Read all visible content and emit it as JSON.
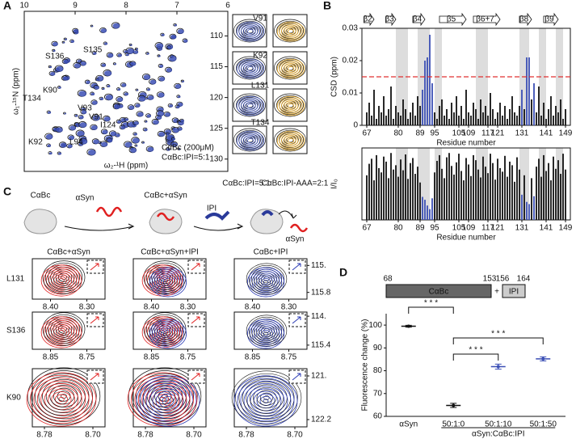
{
  "panel_labels": [
    "A",
    "B",
    "C",
    "D"
  ],
  "panel_a": {
    "x_label": "ω₂-¹H (ppm)",
    "y_label": "ω₁-¹⁵N (ppm)",
    "xlim": [
      10,
      6
    ],
    "xticks": [
      10,
      9,
      8,
      7,
      6
    ],
    "ylim": [
      106,
      132
    ],
    "yticks": [
      110,
      115,
      120,
      125,
      130
    ],
    "peak_labels": [
      "S135",
      "S136",
      "K90",
      "T134",
      "V93",
      "V91",
      "I124",
      "K92",
      "L94"
    ],
    "legend": [
      {
        "name": "CαBc (200μM)",
        "color": "#111111"
      },
      {
        "name": "CαBc:IPI=5:1",
        "color": "#3b4fb5"
      }
    ],
    "insets": {
      "residues": [
        "V91",
        "K92",
        "L131",
        "T134"
      ],
      "captions": [
        "CαBc:IPI=5:1",
        "CαBc:IPI-AAA=2:1"
      ],
      "colors": [
        "#3b4fb5",
        "#e3a21a"
      ]
    }
  },
  "panel_b": {
    "strands": [
      {
        "label": "β2",
        "start": 66,
        "end": 70
      },
      {
        "label": "β3",
        "start": 75,
        "end": 79
      },
      {
        "label": "β4",
        "start": 86,
        "end": 91
      },
      {
        "label": "β5",
        "start": 97,
        "end": 108
      },
      {
        "label": "β6+7",
        "start": 111,
        "end": 122
      },
      {
        "label": "β8",
        "start": 130,
        "end": 135
      },
      {
        "label": "β9",
        "start": 140,
        "end": 146
      }
    ],
    "shaded": [
      [
        79,
        84
      ],
      [
        88,
        93
      ],
      [
        95,
        98
      ],
      [
        112,
        117
      ],
      [
        130,
        134
      ],
      [
        138,
        141
      ],
      [
        145,
        148
      ]
    ],
    "top": {
      "type": "bar",
      "y_label": "CSD (ppm)",
      "x_label": "Residue number",
      "xlim": [
        65,
        151
      ],
      "xticks": [
        67,
        80,
        89,
        95,
        105,
        109,
        117,
        121,
        131,
        141,
        149
      ],
      "ylim": [
        0,
        0.03
      ],
      "yticks": [
        0,
        0.01,
        0.02,
        0.03
      ],
      "threshold": 0.015,
      "threshold_color": "#e03030",
      "series": [
        {
          "color": "#111111",
          "x": [
            67,
            68,
            69,
            70,
            71,
            72,
            73,
            74,
            75,
            76,
            77,
            78,
            79,
            80,
            81,
            82,
            83,
            84,
            85,
            86,
            87,
            88,
            89,
            95,
            96,
            97,
            98,
            99,
            100,
            101,
            102,
            103,
            104,
            105,
            106,
            107,
            108,
            109,
            110,
            111,
            112,
            113,
            114,
            115,
            116,
            117,
            118,
            119,
            120,
            121,
            122,
            123,
            124,
            125,
            126,
            127,
            128,
            129,
            130,
            132,
            135,
            137,
            138,
            139,
            140,
            141,
            142,
            143,
            144,
            145,
            146,
            147,
            148,
            149
          ],
          "values": [
            0.004,
            0.007,
            0.003,
            0.011,
            0.002,
            0.006,
            0.004,
            0.009,
            0.003,
            0.005,
            0.012,
            0.002,
            0.006,
            0.004,
            0.003,
            0.008,
            0.005,
            0.002,
            0.004,
            0.007,
            0.003,
            0.009,
            0.006,
            0.004,
            0.002,
            0.006,
            0.008,
            0.003,
            0.005,
            0.002,
            0.007,
            0.004,
            0.009,
            0.003,
            0.006,
            0.002,
            0.011,
            0.004,
            0.003,
            0.007,
            0.005,
            0.002,
            0.008,
            0.004,
            0.006,
            0.003,
            0.01,
            0.005,
            0.002,
            0.004,
            0.007,
            0.003,
            0.006,
            0.002,
            0.005,
            0.009,
            0.004,
            0.003,
            0.006,
            0.005,
            0.008,
            0.004,
            0.012,
            0.003,
            0.007,
            0.002,
            0.005,
            0.009,
            0.003,
            0.006,
            0.004,
            0.008,
            0.002,
            0.005
          ]
        },
        {
          "color": "#3b4fb5",
          "x": [
            90,
            91,
            92,
            93,
            94,
            131,
            133,
            134,
            136
          ],
          "values": [
            0.011,
            0.02,
            0.021,
            0.028,
            0.013,
            0.011,
            0.021,
            0.021,
            0.013
          ]
        }
      ]
    },
    "bottom": {
      "type": "bar",
      "y_label": "I/I₀",
      "x_label": "Residue number",
      "xlim": [
        65,
        151
      ],
      "xticks": [
        67,
        80,
        89,
        95,
        105,
        109,
        117,
        121,
        131,
        141,
        149
      ],
      "ylim": [
        0,
        1
      ],
      "series": [
        {
          "color": "#111111",
          "x": [
            67,
            68,
            69,
            70,
            71,
            72,
            73,
            74,
            75,
            76,
            77,
            78,
            79,
            80,
            81,
            82,
            83,
            84,
            85,
            86,
            87,
            88,
            89,
            95,
            96,
            97,
            98,
            99,
            100,
            101,
            102,
            103,
            104,
            105,
            106,
            107,
            108,
            109,
            110,
            111,
            112,
            113,
            114,
            115,
            116,
            117,
            118,
            119,
            120,
            121,
            122,
            123,
            124,
            125,
            126,
            127,
            128,
            129,
            130,
            132,
            135,
            137,
            138,
            139,
            140,
            141,
            142,
            143,
            144,
            145,
            146,
            147,
            148,
            149
          ],
          "values": [
            0.62,
            0.78,
            0.85,
            0.55,
            0.9,
            0.72,
            0.66,
            0.88,
            0.81,
            0.58,
            0.93,
            0.7,
            0.76,
            0.6,
            0.84,
            0.69,
            0.91,
            0.57,
            0.79,
            0.86,
            0.64,
            0.74,
            0.52,
            0.66,
            0.82,
            0.9,
            0.71,
            0.58,
            0.87,
            0.93,
            0.75,
            0.63,
            0.8,
            0.92,
            0.68,
            0.55,
            0.86,
            0.77,
            0.61,
            0.9,
            0.83,
            0.7,
            0.59,
            0.88,
            0.74,
            0.65,
            0.92,
            0.79,
            0.56,
            0.85,
            0.72,
            0.67,
            0.89,
            0.6,
            0.81,
            0.76,
            0.53,
            0.87,
            0.7,
            0.62,
            0.58,
            0.74,
            0.85,
            0.6,
            0.9,
            0.68,
            0.79,
            0.55,
            0.88,
            0.71,
            0.83,
            0.64,
            0.92,
            0.7
          ]
        },
        {
          "color": "#3b4fb5",
          "x": [
            90,
            91,
            92,
            93,
            94,
            131,
            133,
            134,
            136
          ],
          "values": [
            0.32,
            0.28,
            0.2,
            0.15,
            0.3,
            0.35,
            0.25,
            0.22,
            0.33
          ]
        }
      ]
    }
  },
  "panel_c": {
    "schematic": [
      "CαBc",
      "αSyn",
      "CαBc+αSyn",
      "IPI",
      "αSyn"
    ],
    "columns": [
      "CαBc+αSyn",
      "CαBc+αSyn+IPI",
      "CαBc+IPI"
    ],
    "rows": [
      {
        "label": "L131",
        "xlim": [
          8.45,
          8.25
        ],
        "xticks": [
          {
            "value": 8.4,
            "label": "8.40"
          },
          {
            "value": 8.3,
            "label": "8.30"
          }
        ],
        "ylim": [
          114.8,
          116
        ],
        "yticks": [
          {
            "value": 115,
            "label": "115."
          },
          115.8
        ]
      },
      {
        "label": "S136",
        "xlim": [
          8.9,
          8.7
        ],
        "xticks": [
          8.85,
          8.75
        ],
        "ylim": [
          113.8,
          115.6
        ],
        "yticks": [
          {
            "value": 114,
            "label": "114."
          },
          115.4
        ]
      },
      {
        "label": "K90",
        "xlim": [
          8.8,
          8.68
        ],
        "xticks": [
          8.78,
          {
            "value": 8.7,
            "label": "8.70"
          }
        ],
        "ylim": [
          120.8,
          122.4
        ],
        "yticks": [
          {
            "value": 121,
            "label": "121."
          },
          122.2
        ]
      }
    ]
  },
  "panel_d": {
    "construct": {
      "start1": 68,
      "end1": 153,
      "start2": 156,
      "end2": 164,
      "domain1": "CαBc",
      "plus": "+",
      "domain2": "IPI"
    },
    "chart": {
      "type": "dot",
      "y_label": "Fluorescence change (%)",
      "x_label": "αSyn:CαBc:IPI",
      "categories": [
        "αSyn",
        "50:1:0",
        "50:1:10",
        "50:1:50"
      ],
      "values": [
        99.5,
        64.8,
        81.8,
        85.2
      ],
      "errors": [
        0.4,
        0.9,
        1.1,
        0.9
      ],
      "colors": [
        "#111111",
        "#111111",
        "#3b4fb5",
        "#3b4fb5"
      ],
      "ylim": [
        60,
        105
      ],
      "yticks": [
        60,
        70,
        80,
        90,
        100
      ],
      "significance": [
        "* * *",
        "* * *",
        "* * *"
      ]
    }
  }
}
